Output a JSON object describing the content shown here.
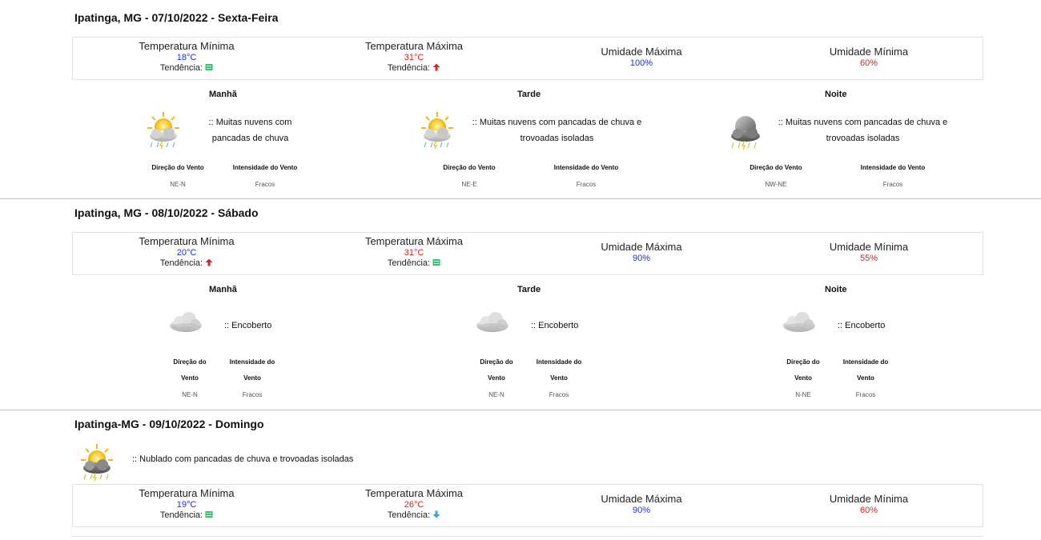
{
  "labels": {
    "temp_min": "Temperatura Mínima",
    "temp_max": "Temperatura Máxima",
    "hum_max": "Umidade Máxima",
    "hum_min": "Umidade Mínima",
    "tendency": "Tendência:",
    "morning": "Manhã",
    "afternoon": "Tarde",
    "night": "Noite",
    "wind_dir": "Direção do Vento",
    "wind_int": "Intensidade do Vento",
    "wind_dir_l1": "Direção do",
    "wind_int_l1": "Intensidade do",
    "wind_l2": "Vento"
  },
  "colors": {
    "min": "#1a2ff0",
    "max": "#e2221f",
    "trend_stable": "#2ec76a",
    "trend_up": "#e2221f",
    "trend_down": "#2aa8e6"
  },
  "days": [
    {
      "title": "Ipatinga, MG - 07/10/2022 - Sexta-Feira",
      "temp_min": "18°C",
      "temp_min_trend": "stable-icon",
      "temp_max": "31°C",
      "temp_max_trend": "up-arrow-icon",
      "hum_max": "100%",
      "hum_min": "60%",
      "periods": [
        {
          "icon": "sun-storm-cloud-icon",
          "desc_l1": ":: Muitas nuvens com",
          "desc_l2": "pancadas de chuva",
          "wind_dir": "NE-N",
          "wind_int": "Fracos"
        },
        {
          "icon": "sun-storm-cloud-icon",
          "desc_l1": ":: Muitas nuvens com pancadas de chuva e",
          "desc_l2": "trovoadas isoladas",
          "wind_dir": "NE-E",
          "wind_int": "Fracos"
        },
        {
          "icon": "moon-storm-cloud-icon",
          "desc_l1": ":: Muitas nuvens com pancadas de chuva e",
          "desc_l2": "trovoadas isoladas",
          "wind_dir": "NW-NE",
          "wind_int": "Fracos"
        }
      ]
    },
    {
      "title": "Ipatinga, MG - 08/10/2022 - Sábado",
      "temp_min": "20°C",
      "temp_min_trend": "up-arrow-icon",
      "temp_max": "31°C",
      "temp_max_trend": "stable-icon",
      "hum_max": "90%",
      "hum_min": "55%",
      "periods": [
        {
          "icon": "overcast-cloud-icon",
          "desc": ":: Encoberto",
          "wind_dir": "NE-N",
          "wind_int": "Fracos"
        },
        {
          "icon": "overcast-cloud-icon",
          "desc": ":: Encoberto",
          "wind_dir": "NE-N",
          "wind_int": "Fracos"
        },
        {
          "icon": "overcast-cloud-icon",
          "desc": ":: Encoberto",
          "wind_dir": "N-NE",
          "wind_int": "Fracos"
        }
      ]
    },
    {
      "title": "Ipatinga-MG - 09/10/2022 - Domingo",
      "summary_icon": "sun-storm-cloud-icon",
      "summary": ":: Nublado com pancadas de chuva e trovoadas isoladas",
      "temp_min": "19°C",
      "temp_min_trend": "stable-icon",
      "temp_max": "26°C",
      "temp_max_trend": "down-arrow-icon",
      "hum_max": "90%",
      "hum_min": "60%"
    }
  ]
}
